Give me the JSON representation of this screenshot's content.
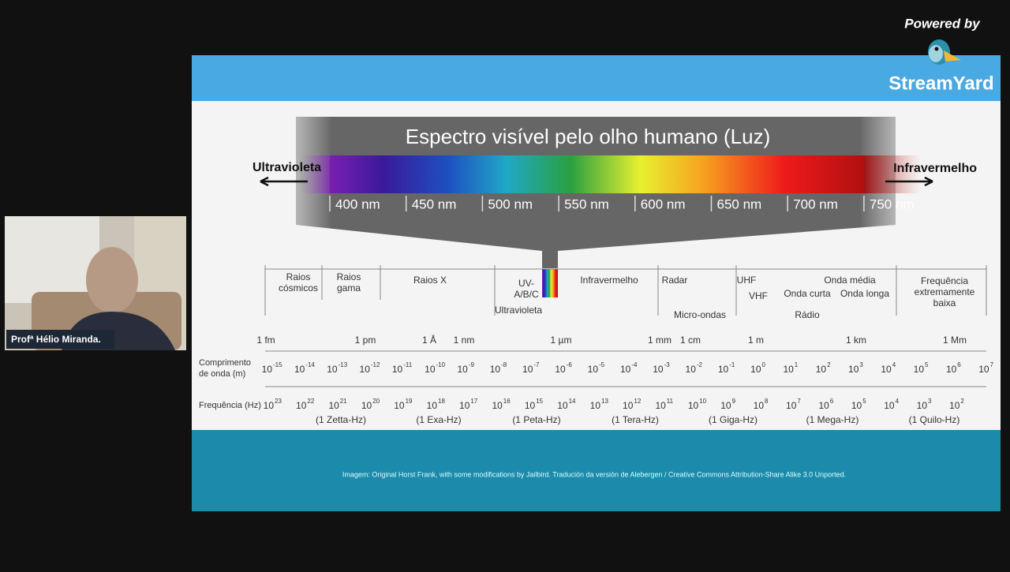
{
  "branding": {
    "powered_by": "Powered by",
    "brand": "StreamYard"
  },
  "webcam": {
    "name": "Profª Hélio Miranda."
  },
  "slide": {
    "title": "Espectro visível pelo olho humano (Luz)",
    "left_label": "Ultravioleta",
    "right_label": "Infravermelho",
    "nm_labels": [
      "400 nm",
      "450 nm",
      "500 nm",
      "550 nm",
      "600 nm",
      "650 nm",
      "700 nm",
      "750 nm"
    ],
    "bands": [
      {
        "lines": [
          "Raios",
          "cósmicos"
        ]
      },
      {
        "lines": [
          "Raios",
          "gama"
        ]
      },
      {
        "lines": [
          "Raios X"
        ]
      },
      {
        "lines": [
          "UV-",
          "A/B/C"
        ]
      },
      {
        "lines": [
          "Ultravioleta"
        ]
      },
      {
        "lines": [
          "Infravermelho"
        ]
      },
      {
        "lines": [
          "Radar"
        ]
      },
      {
        "lines": [
          "Micro-ondas"
        ]
      },
      {
        "lines": [
          "UHF"
        ]
      },
      {
        "lines": [
          "VHF"
        ]
      },
      {
        "lines": [
          "Onda curta"
        ]
      },
      {
        "lines": [
          "Onda média"
        ]
      },
      {
        "lines": [
          "Onda longa"
        ]
      },
      {
        "lines": [
          "Rádio"
        ]
      },
      {
        "lines": [
          "Frequência",
          "extremamente",
          "baixa"
        ]
      }
    ],
    "length_units": [
      "1 fm",
      "1 pm",
      "1 Å",
      "1 nm",
      "1 µm",
      "1 mm",
      "1 cm",
      "1 m",
      "1 km",
      "1 Mm"
    ],
    "wavelength_axis": {
      "label": [
        "Comprimento",
        "de onda (m)"
      ],
      "base": "10",
      "exponents": [
        "-15",
        "-14",
        "-13",
        "-12",
        "-11",
        "-10",
        "-9",
        "-8",
        "-7",
        "-6",
        "-5",
        "-4",
        "-3",
        "-2",
        "-1",
        "0",
        "1",
        "2",
        "3",
        "4",
        "5",
        "6",
        "7"
      ]
    },
    "frequency_axis": {
      "label": "Frequência (Hz)",
      "base": "10",
      "exponents": [
        "23",
        "22",
        "21",
        "20",
        "19",
        "18",
        "17",
        "16",
        "15",
        "14",
        "13",
        "12",
        "11",
        "10",
        "9",
        "8",
        "7",
        "6",
        "5",
        "4",
        "3",
        "2"
      ],
      "prefixes": [
        "(1 Zetta-Hz)",
        "(1 Exa-Hz)",
        "(1 Peta-Hz)",
        "(1 Tera-Hz)",
        "(1 Giga-Hz)",
        "(1 Mega-Hz)",
        "(1 Quilo-Hz)"
      ]
    },
    "credit": "Imagem: Original Horst Frank, with some modifications by Jailbird. Tradución da versión de Alebergen / Creative Commons Attribution-Share Alike 3.0 Unported."
  }
}
